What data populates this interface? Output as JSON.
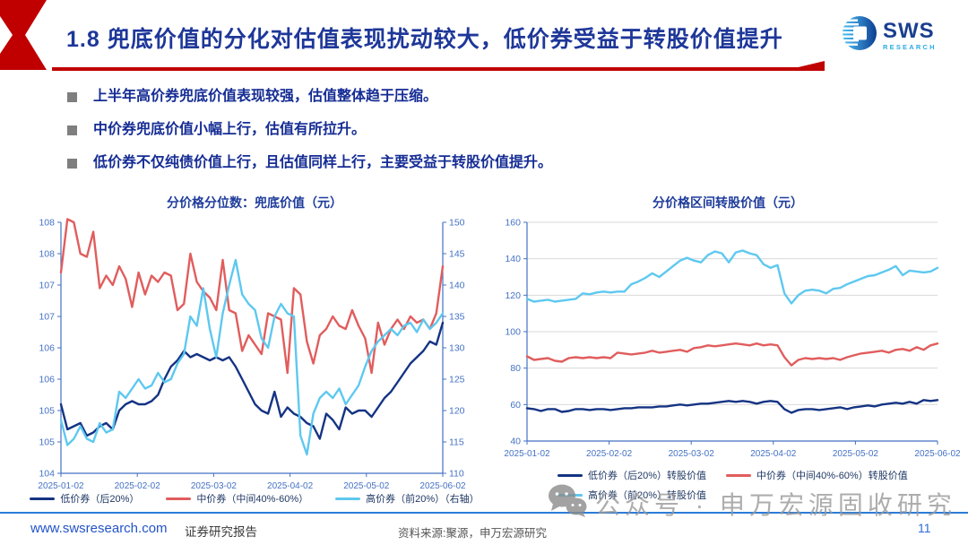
{
  "header": {
    "title": "1.8 兜底价值的分化对估值表现扰动较大，低价券受益于转股价值提升"
  },
  "logo": {
    "name": "SWS",
    "sub": "RESEARCH"
  },
  "colors": {
    "accent_red": "#C00000",
    "title_navy": "#1E3799",
    "axis_blue": "#4472C4",
    "grid_gray": "#D9D9D9",
    "footer_line_blue": "#2B7CD8",
    "watermark_gray": "#999999"
  },
  "bullets": [
    "上半年高价券兜底价值表现较强，估值整体趋于压缩。",
    "中价券兜底价值小幅上行，估值有所拉升。",
    "低价券不仅纯债价值上行，且估值同样上行，主要受益于转股价值提升。"
  ],
  "chart_data": [
    {
      "type": "line",
      "title": "分价格分位数：兜底价值（元）",
      "x_tick_labels": [
        "2025-01-02",
        "2025-02-02",
        "2025-03-02",
        "2025-04-02",
        "2025-05-02",
        "2025-06-02"
      ],
      "left_axis": {
        "min": 104,
        "max": 108,
        "tick_labels_top_to_bottom": [
          "108",
          "108",
          "107",
          "107",
          "106",
          "106",
          "105",
          "105",
          "104"
        ]
      },
      "right_axis": {
        "min": 110,
        "max": 150,
        "tick_labels_top_to_bottom": [
          "150",
          "145",
          "140",
          "135",
          "130",
          "125",
          "120",
          "115",
          "110"
        ]
      },
      "grid": false,
      "legend_rows": [
        [
          0,
          1,
          2
        ]
      ],
      "series": [
        {
          "name": "低价券（后20%）",
          "color": "#143383",
          "axis": "left",
          "values": [
            105.1,
            104.7,
            104.75,
            104.8,
            104.6,
            104.65,
            104.75,
            104.8,
            104.7,
            105.0,
            105.1,
            105.15,
            105.1,
            105.1,
            105.15,
            105.25,
            105.5,
            105.7,
            105.8,
            105.95,
            105.85,
            105.9,
            105.85,
            105.8,
            105.85,
            105.8,
            105.85,
            105.7,
            105.5,
            105.3,
            105.1,
            105.0,
            104.95,
            105.3,
            104.9,
            105.05,
            104.95,
            104.9,
            104.8,
            104.75,
            104.55,
            104.95,
            104.85,
            104.7,
            105.05,
            104.95,
            105.0,
            105.0,
            104.9,
            105.05,
            105.2,
            105.3,
            105.45,
            105.6,
            105.75,
            105.85,
            105.95,
            106.1,
            106.05,
            106.4
          ]
        },
        {
          "name": "中价券（中间40%-60%）",
          "color": "#E15D5D",
          "axis": "left",
          "values": [
            107.2,
            108.05,
            108.0,
            107.5,
            107.45,
            107.85,
            106.95,
            107.15,
            107.0,
            107.3,
            107.1,
            106.65,
            107.2,
            106.85,
            107.15,
            107.05,
            107.2,
            107.15,
            106.6,
            106.7,
            107.5,
            107.05,
            106.9,
            106.8,
            106.6,
            107.4,
            106.6,
            106.55,
            105.95,
            106.2,
            106.05,
            105.9,
            106.55,
            106.5,
            106.45,
            105.6,
            106.95,
            106.85,
            106.1,
            105.75,
            106.2,
            106.3,
            106.5,
            106.35,
            106.3,
            106.6,
            106.35,
            106.15,
            105.6,
            106.4,
            106.05,
            106.3,
            106.45,
            106.3,
            106.5,
            106.4,
            106.45,
            106.3,
            106.55,
            107.3
          ]
        },
        {
          "name": "高价券（前20%）（右轴）",
          "color": "#5EC8F0",
          "axis": "right",
          "values": [
            118.5,
            114.5,
            115.5,
            117.5,
            115.5,
            115.0,
            118.0,
            116.5,
            117.0,
            123.0,
            122.0,
            123.5,
            125.0,
            123.5,
            124.0,
            126.0,
            124.5,
            125.0,
            127.5,
            129.0,
            135.0,
            133.5,
            139.5,
            133.0,
            128.5,
            135.5,
            140.0,
            144.0,
            138.5,
            137.0,
            136.0,
            131.5,
            130.0,
            135.0,
            137.0,
            135.5,
            135.0,
            116.0,
            113.0,
            119.5,
            122.0,
            123.0,
            122.0,
            123.5,
            121.0,
            122.5,
            124.0,
            127.0,
            129.5,
            131.0,
            132.0,
            133.0,
            132.0,
            133.5,
            134.0,
            132.5,
            134.5,
            133.0,
            134.0,
            135.5
          ]
        }
      ]
    },
    {
      "type": "line",
      "title": "分价格区间转股价值（元）",
      "x_tick_labels": [
        "2025-01-02",
        "2025-02-02",
        "2025-03-02",
        "2025-04-02",
        "2025-05-02",
        "2025-06-02"
      ],
      "left_axis": {
        "min": 40,
        "max": 160,
        "tick_labels_top_to_bottom": [
          "160",
          "140",
          "120",
          "100",
          "80",
          "60",
          "40"
        ]
      },
      "right_axis": null,
      "grid": true,
      "legend_rows": [
        [
          0,
          1
        ],
        [
          2
        ]
      ],
      "series": [
        {
          "name": "低价券（后20%）转股价值",
          "color": "#143383",
          "axis": "left",
          "values": [
            58,
            57.5,
            56.5,
            57.5,
            57.5,
            56,
            56.5,
            57.5,
            57.5,
            57,
            57.5,
            57.5,
            57,
            57.5,
            58,
            58,
            58.5,
            58.5,
            58.5,
            59,
            59,
            59.5,
            60,
            59.5,
            60,
            60.5,
            60.5,
            61,
            61.5,
            62,
            61.5,
            62,
            61.5,
            60.5,
            61.5,
            62,
            61.5,
            57.5,
            55.5,
            57,
            57.5,
            57.5,
            57,
            57.5,
            58,
            58.5,
            57.5,
            58.5,
            59,
            59.5,
            59,
            60,
            60.5,
            61,
            60.5,
            61.5,
            60.5,
            62.5,
            62,
            62.5
          ]
        },
        {
          "name": "中价券（中间40%-60%）转股价值",
          "color": "#E15D5D",
          "axis": "left",
          "values": [
            86.5,
            84.5,
            85,
            85.5,
            84,
            83.5,
            85.5,
            86,
            85.5,
            86,
            85.5,
            86,
            85.5,
            88.5,
            88,
            87.5,
            88,
            88.5,
            89.5,
            88.5,
            89,
            89.5,
            90,
            89,
            91,
            91.5,
            92.5,
            92,
            92.5,
            93,
            93.5,
            93,
            92.5,
            93.5,
            92.5,
            93,
            92.5,
            86,
            81.5,
            84.5,
            85.5,
            85,
            85.5,
            85,
            85.5,
            84.5,
            86,
            87,
            88,
            88.5,
            89,
            89.5,
            88.5,
            90,
            90.5,
            89.5,
            91.5,
            90,
            92.5,
            93.5
          ]
        },
        {
          "name": "高价券（前20%）转股价值",
          "color": "#5EC8F0",
          "axis": "left",
          "values": [
            118,
            116.5,
            117,
            117.5,
            116.5,
            117,
            117.5,
            118,
            121,
            120.5,
            121.5,
            122,
            121.5,
            122,
            122,
            126,
            127.5,
            129.5,
            132,
            130,
            133,
            136,
            139,
            140.5,
            139,
            138,
            142,
            144,
            143,
            138,
            143.5,
            144.5,
            143,
            142,
            137,
            135,
            136.5,
            121,
            115.5,
            120,
            122.5,
            123,
            122.5,
            121,
            123.5,
            124,
            126,
            127.5,
            129,
            130.5,
            131,
            132.5,
            134,
            136,
            131,
            133.5,
            133,
            132.5,
            133,
            135
          ]
        }
      ]
    }
  ],
  "watermark": {
    "text": "公众号 · 申万宏源固收研究"
  },
  "footer": {
    "website": "www.swsresearch.com",
    "report_type": "证券研究报告",
    "source": "资料来源:聚源，申万宏源研究",
    "page_number": "11"
  }
}
